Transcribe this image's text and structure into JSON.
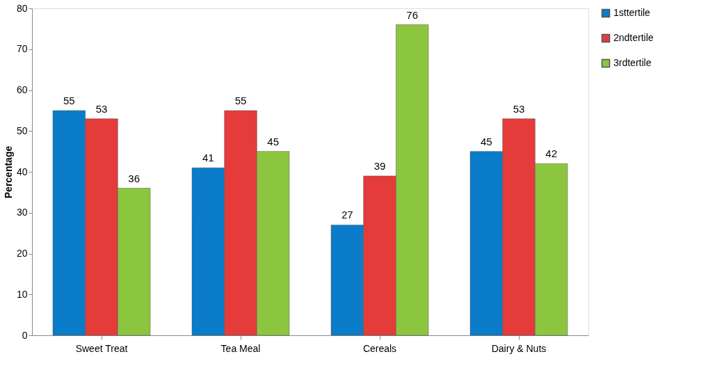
{
  "chart_data": {
    "type": "bar",
    "ylabel": "Percentage",
    "categories": [
      "Sweet Treat",
      "Tea Meal",
      "Cereals",
      "Dairy & Nuts"
    ],
    "series": [
      {
        "name": "1sttertile",
        "color": "#0a7cc9",
        "values": [
          55,
          41,
          27,
          45
        ]
      },
      {
        "name": "2ndtertile",
        "color": "#e53b3b",
        "values": [
          53,
          55,
          39,
          53
        ]
      },
      {
        "name": "3rdtertile",
        "color": "#8cc63f",
        "values": [
          36,
          45,
          76,
          42
        ]
      }
    ],
    "ylim": [
      0,
      80
    ],
    "yticks": [
      0,
      10,
      20,
      30,
      40,
      50,
      60,
      70,
      80
    ],
    "data_labels": true,
    "legend": "right",
    "grid": false
  }
}
